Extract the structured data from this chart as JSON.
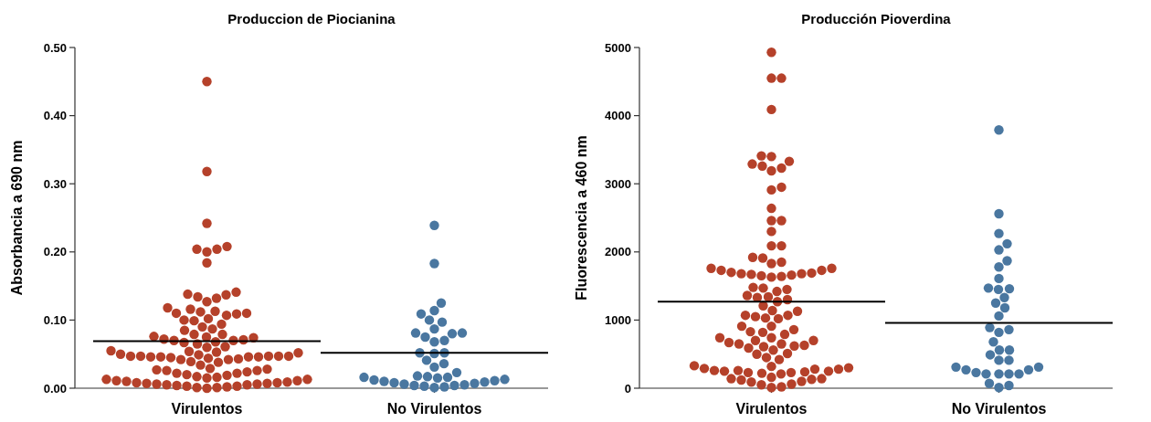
{
  "chart_data": [
    {
      "type": "scatter",
      "title": "Produccion de Piocianina",
      "ylabel": "Absorbancia a 690 nm",
      "categories": [
        "Virulentos",
        "No Virulentos"
      ],
      "ylim": [
        0,
        0.5
      ],
      "yticks": [
        {
          "value": 0,
          "label": "0.00"
        },
        {
          "value": 0.1,
          "label": "0.10"
        },
        {
          "value": 0.2,
          "label": "0.20"
        },
        {
          "value": 0.3,
          "label": "0.30"
        },
        {
          "value": 0.4,
          "label": "0.40"
        },
        {
          "value": 0.5,
          "label": "0.50"
        }
      ],
      "marker": "circle",
      "grid": false,
      "ref_lines": [
        {
          "axis": "y",
          "value": 0.069,
          "label": null,
          "color": "#000000"
        },
        {
          "axis": "y",
          "value": 0.052,
          "label": null,
          "color": "#000000"
        }
      ],
      "series": [
        {
          "color": "#b5412a",
          "x": [
            "Virulentos",
            "Virulentos",
            "Virulentos",
            "Virulentos",
            "Virulentos",
            "Virulentos",
            "Virulentos",
            "Virulentos",
            "Virulentos",
            "Virulentos",
            "Virulentos",
            "Virulentos",
            "Virulentos",
            "Virulentos",
            "Virulentos",
            "Virulentos",
            "Virulentos",
            "Virulentos",
            "Virulentos",
            "Virulentos",
            "Virulentos",
            "Virulentos",
            "Virulentos",
            "Virulentos",
            "Virulentos",
            "Virulentos",
            "Virulentos",
            "Virulentos",
            "Virulentos",
            "Virulentos",
            "Virulentos",
            "Virulentos",
            "Virulentos",
            "Virulentos",
            "Virulentos",
            "Virulentos",
            "Virulentos",
            "Virulentos",
            "Virulentos",
            "Virulentos",
            "Virulentos",
            "Virulentos",
            "Virulentos",
            "Virulentos",
            "Virulentos",
            "Virulentos",
            "Virulentos",
            "Virulentos",
            "Virulentos",
            "Virulentos",
            "Virulentos",
            "Virulentos",
            "Virulentos",
            "Virulentos",
            "Virulentos",
            "Virulentos",
            "Virulentos",
            "Virulentos",
            "Virulentos",
            "Virulentos",
            "Virulentos",
            "Virulentos",
            "Virulentos",
            "Virulentos",
            "Virulentos",
            "Virulentos",
            "Virulentos",
            "Virulentos",
            "Virulentos",
            "Virulentos",
            "Virulentos",
            "Virulentos",
            "Virulentos",
            "Virulentos",
            "Virulentos",
            "Virulentos",
            "Virulentos",
            "Virulentos",
            "Virulentos",
            "Virulentos",
            "Virulentos",
            "Virulentos",
            "Virulentos",
            "Virulentos",
            "Virulentos",
            "Virulentos",
            "Virulentos",
            "Virulentos",
            "Virulentos",
            "Virulentos",
            "Virulentos",
            "Virulentos",
            "Virulentos",
            "Virulentos",
            "Virulentos",
            "Virulentos",
            "Virulentos",
            "Virulentos",
            "Virulentos",
            "Virulentos"
          ],
          "values": [
            0.45,
            0.318,
            0.242,
            0.208,
            0.204,
            0.2,
            0.204,
            0.184,
            0.141,
            0.137,
            0.132,
            0.127,
            0.134,
            0.138,
            0.116,
            0.112,
            0.11,
            0.107,
            0.109,
            0.11,
            0.113,
            0.118,
            0.099,
            0.094,
            0.09,
            0.1,
            0.102,
            0.087,
            0.079,
            0.076,
            0.074,
            0.072,
            0.071,
            0.075,
            0.079,
            0.085,
            0.07,
            0.07,
            0.068,
            0.067,
            0.054,
            0.052,
            0.049,
            0.047,
            0.047,
            0.046,
            0.045,
            0.043,
            0.042,
            0.042,
            0.046,
            0.047,
            0.05,
            0.053,
            0.046,
            0.047,
            0.047,
            0.044,
            0.046,
            0.055,
            0.06,
            0.061,
            0.065,
            0.034,
            0.029,
            0.027,
            0.026,
            0.024,
            0.022,
            0.02,
            0.022,
            0.026,
            0.028,
            0.038,
            0.039,
            0.019,
            0.015,
            0.013,
            0.011,
            0.01,
            0.008,
            0.007,
            0.006,
            0.005,
            0.004,
            0.003,
            0.001,
            0.0,
            0.001,
            0.002,
            0.003,
            0.005,
            0.006,
            0.007,
            0.008,
            0.009,
            0.011,
            0.016,
            0.017,
            0.013
          ]
        },
        {
          "color": "#4a77a0",
          "x": [
            "No Virulentos",
            "No Virulentos",
            "No Virulentos",
            "No Virulentos",
            "No Virulentos",
            "No Virulentos",
            "No Virulentos",
            "No Virulentos",
            "No Virulentos",
            "No Virulentos",
            "No Virulentos",
            "No Virulentos",
            "No Virulentos",
            "No Virulentos",
            "No Virulentos",
            "No Virulentos",
            "No Virulentos",
            "No Virulentos",
            "No Virulentos",
            "No Virulentos",
            "No Virulentos",
            "No Virulentos",
            "No Virulentos",
            "No Virulentos",
            "No Virulentos",
            "No Virulentos",
            "No Virulentos",
            "No Virulentos",
            "No Virulentos",
            "No Virulentos",
            "No Virulentos",
            "No Virulentos",
            "No Virulentos",
            "No Virulentos",
            "No Virulentos",
            "No Virulentos",
            "No Virulentos",
            "No Virulentos",
            "No Virulentos",
            "No Virulentos"
          ],
          "values": [
            0.239,
            0.183,
            0.125,
            0.114,
            0.109,
            0.1,
            0.097,
            0.087,
            0.081,
            0.081,
            0.08,
            0.075,
            0.07,
            0.068,
            0.052,
            0.052,
            0.051,
            0.041,
            0.036,
            0.031,
            0.023,
            0.018,
            0.017,
            0.016,
            0.013,
            0.011,
            0.009,
            0.007,
            0.005,
            0.004,
            0.002,
            0.001,
            0.003,
            0.004,
            0.006,
            0.008,
            0.01,
            0.012,
            0.015,
            0.016
          ]
        }
      ]
    },
    {
      "type": "scatter",
      "title": "Producción Pioverdina",
      "ylabel": "Fluorescencia a 460 nm",
      "categories": [
        "Virulentos",
        "No Virulentos"
      ],
      "ylim": [
        0,
        5000
      ],
      "yticks": [
        0,
        1000,
        2000,
        3000,
        4000,
        5000
      ],
      "marker": "circle",
      "grid": false,
      "ref_lines": [
        {
          "axis": "y",
          "value": 1270,
          "label": null,
          "color": "#000000"
        },
        {
          "axis": "y",
          "value": 960,
          "label": null,
          "color": "#000000"
        }
      ],
      "series": [
        {
          "color": "#b5412a",
          "x": [
            "Virulentos",
            "Virulentos",
            "Virulentos",
            "Virulentos",
            "Virulentos",
            "Virulentos",
            "Virulentos",
            "Virulentos",
            "Virulentos",
            "Virulentos",
            "Virulentos",
            "Virulentos",
            "Virulentos",
            "Virulentos",
            "Virulentos",
            "Virulentos",
            "Virulentos",
            "Virulentos",
            "Virulentos",
            "Virulentos",
            "Virulentos",
            "Virulentos",
            "Virulentos",
            "Virulentos",
            "Virulentos",
            "Virulentos",
            "Virulentos",
            "Virulentos",
            "Virulentos",
            "Virulentos",
            "Virulentos",
            "Virulentos",
            "Virulentos",
            "Virulentos",
            "Virulentos",
            "Virulentos",
            "Virulentos",
            "Virulentos",
            "Virulentos",
            "Virulentos",
            "Virulentos",
            "Virulentos",
            "Virulentos",
            "Virulentos",
            "Virulentos",
            "Virulentos",
            "Virulentos",
            "Virulentos",
            "Virulentos",
            "Virulentos",
            "Virulentos",
            "Virulentos",
            "Virulentos",
            "Virulentos",
            "Virulentos",
            "Virulentos",
            "Virulentos",
            "Virulentos",
            "Virulentos",
            "Virulentos",
            "Virulentos",
            "Virulentos",
            "Virulentos",
            "Virulentos",
            "Virulentos",
            "Virulentos",
            "Virulentos",
            "Virulentos",
            "Virulentos",
            "Virulentos",
            "Virulentos",
            "Virulentos",
            "Virulentos",
            "Virulentos",
            "Virulentos",
            "Virulentos",
            "Virulentos",
            "Virulentos",
            "Virulentos",
            "Virulentos",
            "Virulentos",
            "Virulentos",
            "Virulentos",
            "Virulentos",
            "Virulentos",
            "Virulentos",
            "Virulentos",
            "Virulentos",
            "Virulentos",
            "Virulentos",
            "Virulentos",
            "Virulentos",
            "Virulentos",
            "Virulentos",
            "Virulentos",
            "Virulentos",
            "Virulentos",
            "Virulentos",
            "Virulentos",
            "Virulentos",
            "Virulentos"
          ],
          "values": [
            4930,
            4550,
            4550,
            4090,
            3400,
            3410,
            3290,
            3230,
            3190,
            3260,
            3330,
            2910,
            2950,
            2640,
            2460,
            2460,
            2300,
            2090,
            2090,
            1920,
            1910,
            1850,
            1830,
            1760,
            1730,
            1700,
            1680,
            1660,
            1650,
            1630,
            1640,
            1670,
            1680,
            1690,
            1730,
            1760,
            1480,
            1450,
            1470,
            1420,
            1360,
            1330,
            1300,
            1270,
            1340,
            1210,
            1130,
            1140,
            1070,
            1030,
            1020,
            1050,
            1070,
            910,
            910,
            860,
            830,
            820,
            790,
            740,
            700,
            650,
            630,
            610,
            590,
            620,
            650,
            670,
            700,
            740,
            560,
            500,
            510,
            450,
            420,
            330,
            300,
            280,
            260,
            250,
            240,
            230,
            220,
            210,
            230,
            250,
            260,
            280,
            290,
            320,
            160,
            140,
            140,
            130,
            120,
            100,
            90,
            60,
            50,
            20,
            10
          ]
        },
        {
          "color": "#4a77a0",
          "x": [
            "No Virulentos",
            "No Virulentos",
            "No Virulentos",
            "No Virulentos",
            "No Virulentos",
            "No Virulentos",
            "No Virulentos",
            "No Virulentos",
            "No Virulentos",
            "No Virulentos",
            "No Virulentos",
            "No Virulentos",
            "No Virulentos",
            "No Virulentos",
            "No Virulentos",
            "No Virulentos",
            "No Virulentos",
            "No Virulentos",
            "No Virulentos",
            "No Virulentos",
            "No Virulentos",
            "No Virulentos",
            "No Virulentos",
            "No Virulentos",
            "No Virulentos",
            "No Virulentos",
            "No Virulentos",
            "No Virulentos",
            "No Virulentos",
            "No Virulentos",
            "No Virulentos",
            "No Virulentos",
            "No Virulentos",
            "No Virulentos",
            "No Virulentos",
            "No Virulentos"
          ],
          "values": [
            3790,
            2560,
            2270,
            2120,
            2030,
            1870,
            1780,
            1610,
            1460,
            1450,
            1470,
            1330,
            1250,
            1180,
            1060,
            890,
            860,
            820,
            680,
            560,
            560,
            490,
            410,
            410,
            310,
            270,
            210,
            210,
            210,
            210,
            230,
            270,
            310,
            70,
            10,
            40
          ]
        }
      ]
    }
  ]
}
